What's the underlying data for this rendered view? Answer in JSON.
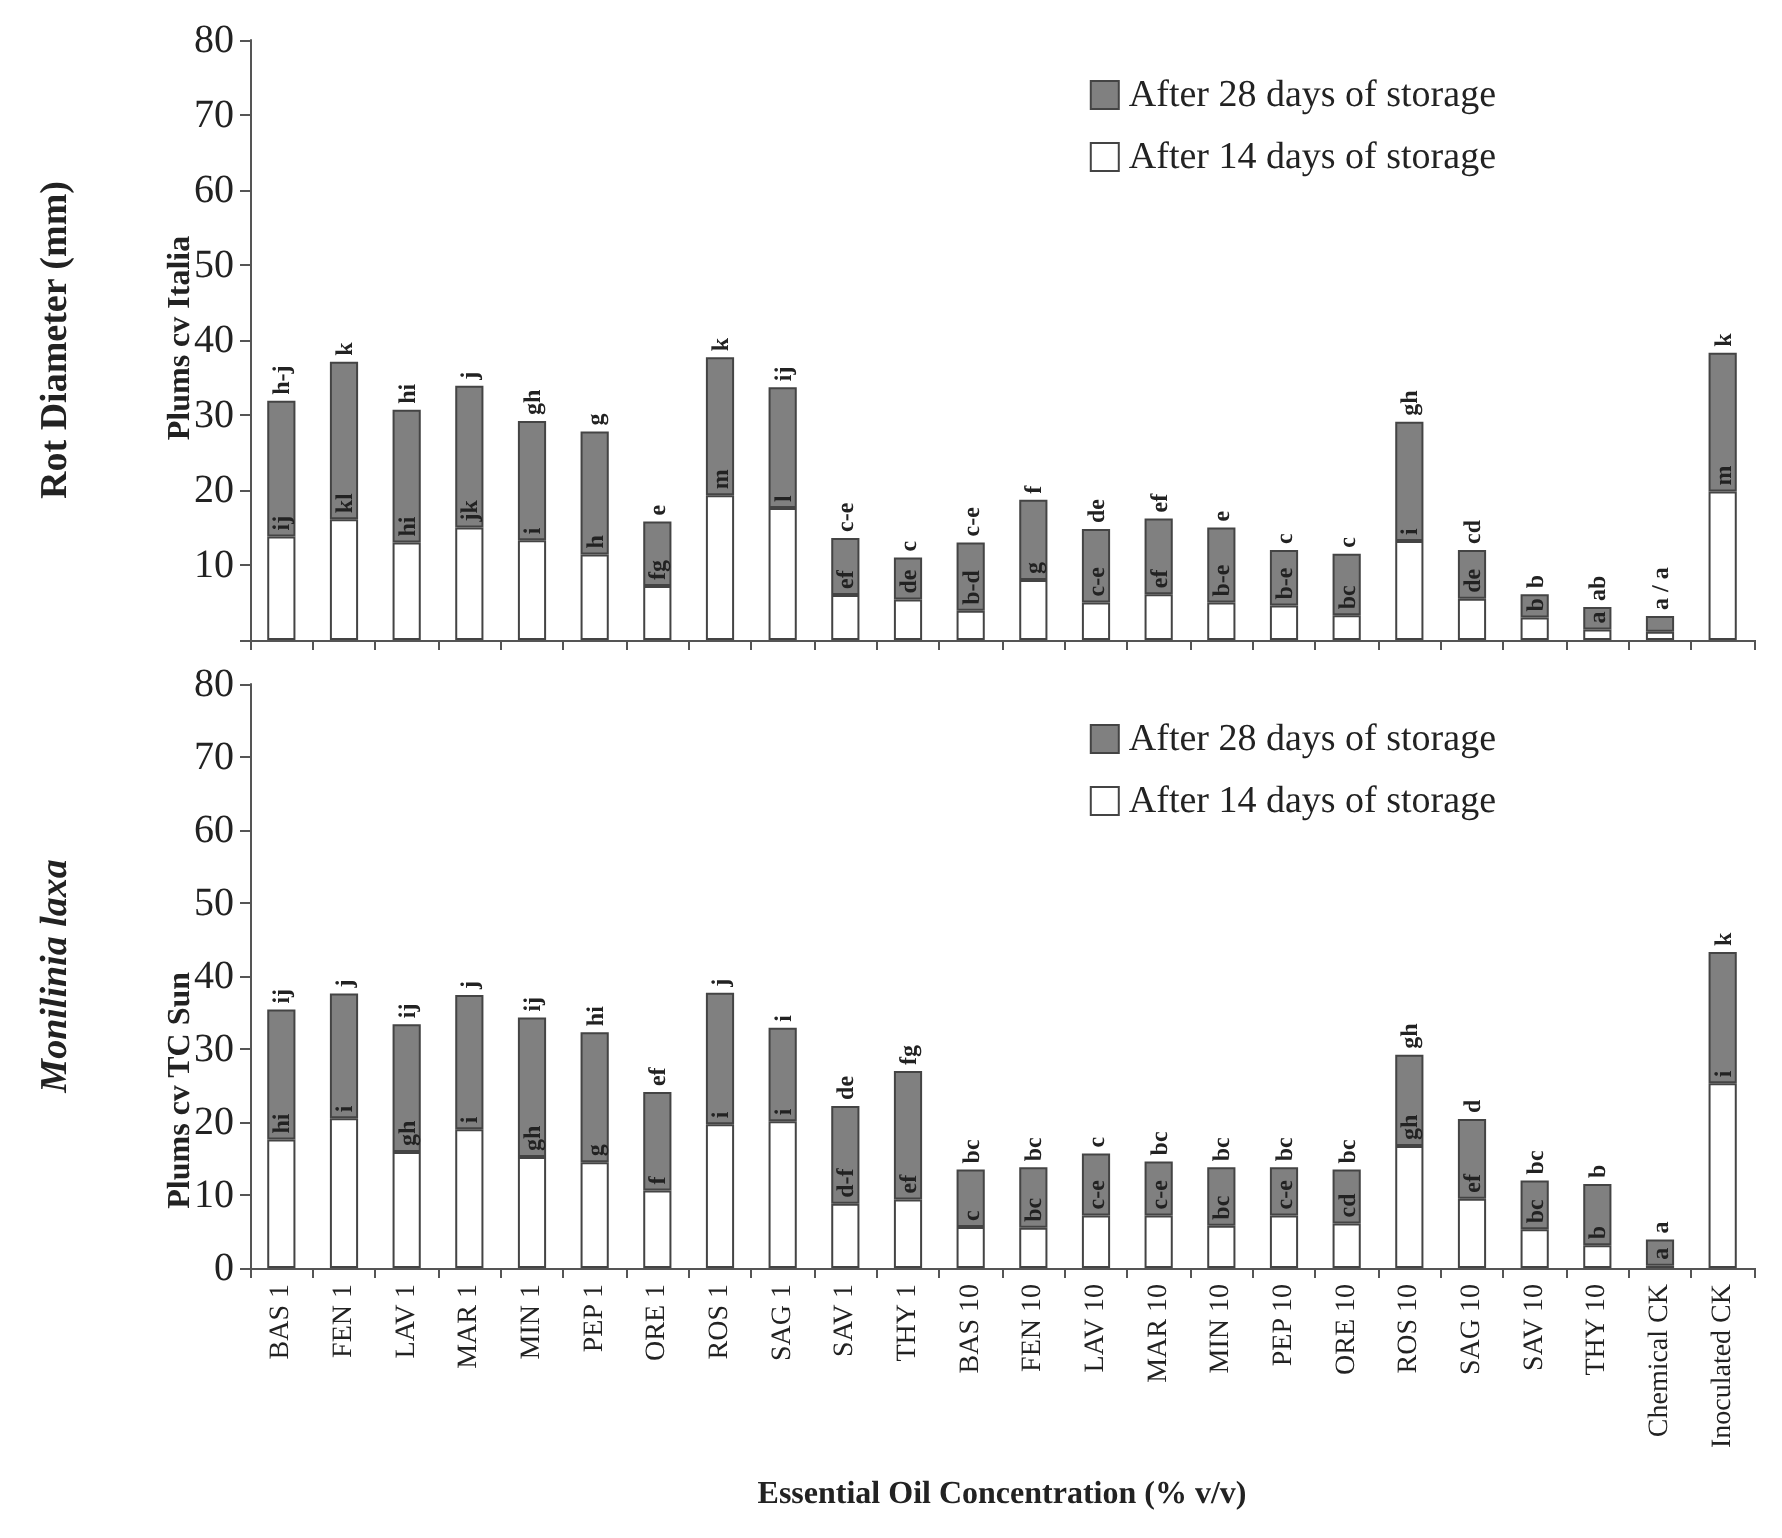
{
  "chart_data": [
    {
      "type": "bar",
      "title": "Plums cv Italia",
      "ylabel": "Rot Diameter (mm)",
      "stacked": true,
      "legend": "top right",
      "grid": false,
      "tick_labels": "y",
      "categories": [
        null,
        null,
        null,
        null,
        null,
        null,
        null,
        null,
        null,
        null,
        null,
        null,
        null,
        null,
        null,
        null,
        null,
        null,
        null,
        null,
        null,
        null,
        null,
        null
      ],
      "ylim": [
        0,
        80
      ],
      "yticks": [
        {
          "value": 0,
          "label": null
        },
        10,
        20,
        30,
        40,
        50,
        60,
        70,
        80
      ],
      "series": [
        {
          "name": "After 14 days of storage",
          "color": "#ffffff",
          "values": [
            13.8,
            16.1,
            13.0,
            15.0,
            13.3,
            11.4,
            7.2,
            19.3,
            17.6,
            6.0,
            5.4,
            3.9,
            8.0,
            5.0,
            6.1,
            5.0,
            4.6,
            3.3,
            13.2,
            5.5,
            3.0,
            1.4,
            1.1,
            19.8
          ],
          "value_labels": [
            "ij",
            "kl",
            "hi",
            "jk",
            "i",
            "h",
            "fg",
            "m",
            "l",
            "ef",
            "de",
            "b-d",
            "g",
            "c-e",
            "ef",
            "b-e",
            "b-e",
            "bc",
            "i",
            "de",
            "b",
            "a",
            null,
            "m"
          ]
        },
        {
          "name": "After 28 days of storage",
          "color": "#808080",
          "values": [
            18.1,
            21.0,
            17.7,
            18.9,
            15.9,
            16.4,
            8.6,
            18.4,
            16.1,
            7.6,
            5.6,
            9.1,
            10.7,
            9.8,
            10.1,
            10.0,
            7.4,
            8.2,
            15.9,
            6.5,
            3.1,
            3.0,
            2.1,
            18.5
          ],
          "value_labels": [
            "h-j",
            "k",
            "hi",
            "j",
            "gh",
            "g",
            "e",
            "k",
            "ij",
            "c-e",
            "c",
            "c-e",
            "f",
            "de",
            "ef",
            "e",
            "c",
            "c",
            "gh",
            "cd",
            "b",
            "ab",
            "a / a",
            "k"
          ]
        }
      ]
    },
    {
      "type": "bar",
      "title": "Plums cv TC Sun",
      "ylabel": "Monilinia laxa",
      "xlabel": "Essential Oil Concentration (% v/v)",
      "stacked": true,
      "legend": "top right",
      "grid": false,
      "categories": [
        "BAS 1",
        "FEN 1",
        "LAV 1",
        "MAR 1",
        "MIN 1",
        "PEP 1",
        "ORE 1",
        "ROS 1",
        "SAG 1",
        "SAV 1",
        "THY 1",
        "BAS 10",
        "FEN 10",
        "LAV 10",
        "MAR 10",
        "MIN 10",
        "PEP 10",
        "ORE 10",
        "ROS 10",
        "SAG 10",
        "SAV 10",
        "THY 10",
        "Chemical CK",
        "Inoculated CK"
      ],
      "ylim": [
        0,
        80
      ],
      "yticks": [
        0,
        10,
        20,
        30,
        40,
        50,
        60,
        70,
        80
      ],
      "series": [
        {
          "name": "After 14 days of storage",
          "color": "#ffffff",
          "values": [
            17.6,
            20.5,
            15.9,
            19.0,
            15.2,
            14.5,
            10.6,
            19.7,
            20.1,
            8.8,
            9.4,
            5.6,
            5.5,
            7.2,
            7.2,
            5.8,
            7.2,
            6.1,
            16.7,
            9.5,
            5.3,
            3.1,
            0.3,
            25.3
          ],
          "value_labels": [
            "hi",
            "i",
            "gh",
            "i",
            "gh",
            "g",
            "f",
            "i",
            "i",
            "d-f",
            "ef",
            "c",
            "bc",
            "c-e",
            "c-e",
            "bc",
            "c-e",
            "cd",
            "gh",
            "ef",
            "bc",
            "b",
            "a",
            "i"
          ]
        },
        {
          "name": "After 28 days of storage",
          "color": "#808080",
          "values": [
            17.8,
            17.1,
            17.5,
            18.4,
            19.1,
            17.8,
            13.5,
            18.0,
            12.8,
            13.4,
            17.6,
            7.9,
            8.3,
            8.5,
            7.4,
            8.0,
            6.6,
            7.4,
            12.5,
            10.9,
            6.7,
            8.4,
            3.6,
            18.0
          ],
          "value_labels": [
            "ij",
            "j",
            "ij",
            "j",
            "ij",
            "hi",
            "ef",
            "j",
            "i",
            "de",
            "fg",
            "bc",
            "bc",
            "c",
            "bc",
            "bc",
            "bc",
            "bc",
            "gh",
            "d",
            "bc",
            "b",
            "a",
            "k"
          ]
        }
      ]
    }
  ]
}
